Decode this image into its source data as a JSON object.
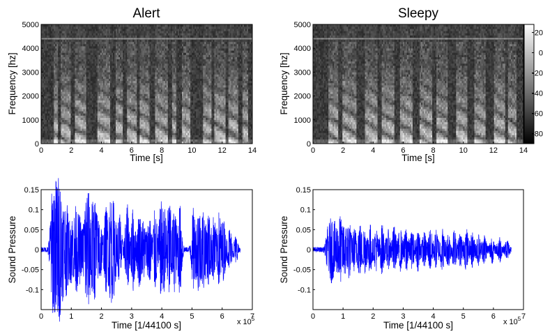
{
  "chart_data": [
    {
      "type": "heatmap",
      "title": "Alert",
      "xlabel": "Time [s]",
      "ylabel": "Frequency [hz]",
      "xlim": [
        0,
        14
      ],
      "ylim": [
        0,
        5000
      ],
      "x_ticks": [
        "0",
        "2",
        "4",
        "6",
        "8",
        "10",
        "12",
        "14"
      ],
      "y_ticks": [
        "0",
        "1000",
        "2000",
        "3000",
        "4000",
        "5000"
      ],
      "colormap": "gray",
      "speech_segments_s": [
        [
          0.8,
          1.1
        ],
        [
          1.3,
          2.0
        ],
        [
          2.2,
          3.0
        ],
        [
          3.7,
          4.6
        ],
        [
          4.9,
          5.4
        ],
        [
          5.7,
          6.3
        ],
        [
          6.5,
          7.2
        ],
        [
          7.6,
          8.4
        ],
        [
          8.7,
          9.0
        ],
        [
          9.3,
          9.9
        ],
        [
          10.7,
          11.3
        ],
        [
          11.5,
          12.2
        ],
        [
          12.4,
          13.1
        ],
        [
          13.3,
          13.7
        ]
      ]
    },
    {
      "type": "heatmap",
      "title": "Sleepy",
      "xlabel": "Time [s]",
      "ylabel": "Frequency [hz]",
      "xlim": [
        0,
        14
      ],
      "ylim": [
        0,
        5000
      ],
      "x_ticks": [
        "0",
        "2",
        "4",
        "6",
        "8",
        "10",
        "12",
        "14"
      ],
      "y_ticks": [
        "0",
        "1000",
        "2000",
        "3000",
        "4000",
        "5000"
      ],
      "colormap": "gray",
      "colorbar": {
        "ticks": [
          "20",
          "0",
          "-20",
          "-40",
          "-60",
          "-80"
        ],
        "range": [
          -90,
          28
        ]
      },
      "speech_segments_s": [
        [
          1.0,
          1.7
        ],
        [
          2.0,
          2.9
        ],
        [
          3.5,
          4.3
        ],
        [
          4.6,
          5.4
        ],
        [
          5.8,
          6.6
        ],
        [
          7.1,
          7.9
        ],
        [
          8.2,
          9.0
        ],
        [
          9.5,
          10.3
        ],
        [
          10.7,
          11.5
        ],
        [
          12.0,
          12.8
        ],
        [
          13.0,
          13.5
        ]
      ]
    },
    {
      "type": "line",
      "xlabel": "Time [1/44100 s]",
      "ylabel": "Sound Pressure",
      "x_multiplier": "x 10^5",
      "xlim": [
        0,
        7
      ],
      "ylim": [
        -0.15,
        0.15
      ],
      "x_ticks": [
        "0",
        "1",
        "2",
        "3",
        "4",
        "5",
        "6",
        "7"
      ],
      "y_ticks": [
        "0.15",
        "0.1",
        "0.05",
        "0",
        "-0.05",
        "-0.1"
      ],
      "series_color": "#0000ff",
      "signal_end": 6.6,
      "bursts": [
        [
          0.36,
          0.12
        ],
        [
          0.44,
          0.07
        ],
        [
          0.52,
          0.13
        ],
        [
          0.62,
          0.135
        ],
        [
          0.73,
          0.09
        ],
        [
          0.85,
          0.1
        ],
        [
          1.0,
          0.08
        ],
        [
          1.15,
          0.1
        ],
        [
          1.28,
          0.075
        ],
        [
          1.45,
          0.09
        ],
        [
          1.55,
          0.13
        ],
        [
          1.68,
          0.1
        ],
        [
          1.8,
          0.11
        ],
        [
          1.95,
          0.08
        ],
        [
          2.15,
          0.1
        ],
        [
          2.3,
          0.12
        ],
        [
          2.42,
          0.1
        ],
        [
          2.6,
          0.09
        ],
        [
          2.85,
          0.11
        ],
        [
          3.05,
          0.1
        ],
        [
          3.25,
          0.09
        ],
        [
          3.4,
          0.07
        ],
        [
          3.58,
          0.09
        ],
        [
          3.78,
          0.1
        ],
        [
          3.97,
          0.11
        ],
        [
          4.1,
          0.09
        ],
        [
          4.25,
          0.12
        ],
        [
          4.42,
          0.1
        ],
        [
          4.6,
          0.11
        ],
        [
          5.05,
          0.1
        ],
        [
          5.22,
          0.11
        ],
        [
          5.38,
          0.1
        ],
        [
          5.55,
          0.09
        ],
        [
          5.72,
          0.08
        ],
        [
          5.9,
          0.09
        ],
        [
          6.05,
          0.07
        ],
        [
          6.25,
          0.05
        ],
        [
          6.45,
          0.03
        ]
      ]
    },
    {
      "type": "line",
      "xlabel": "Time [1/44100 s]",
      "ylabel": "Sound Pressure",
      "x_multiplier": "x 10^5",
      "xlim": [
        0,
        7
      ],
      "ylim": [
        -0.15,
        0.15
      ],
      "x_ticks": [
        "0",
        "1",
        "2",
        "3",
        "4",
        "5",
        "6",
        "7"
      ],
      "y_ticks": [
        "0.15",
        "0.1",
        "0.05",
        "0",
        "-0.05",
        "-0.1"
      ],
      "series_color": "#0000ff",
      "signal_end": 6.6,
      "bursts": [
        [
          0.5,
          0.05
        ],
        [
          0.62,
          0.07
        ],
        [
          0.75,
          0.06
        ],
        [
          0.9,
          0.08
        ],
        [
          1.05,
          0.06
        ],
        [
          1.2,
          0.07
        ],
        [
          1.38,
          0.05
        ],
        [
          1.55,
          0.065
        ],
        [
          1.72,
          0.055
        ],
        [
          1.9,
          0.06
        ],
        [
          2.1,
          0.05
        ],
        [
          2.3,
          0.06
        ],
        [
          2.5,
          0.045
        ],
        [
          2.7,
          0.055
        ],
        [
          2.9,
          0.05
        ],
        [
          3.1,
          0.055
        ],
        [
          3.3,
          0.045
        ],
        [
          3.5,
          0.05
        ],
        [
          3.7,
          0.04
        ],
        [
          3.9,
          0.05
        ],
        [
          4.1,
          0.045
        ],
        [
          4.3,
          0.05
        ],
        [
          4.5,
          0.04
        ],
        [
          4.7,
          0.045
        ],
        [
          4.9,
          0.04
        ],
        [
          5.1,
          0.05
        ],
        [
          5.3,
          0.04
        ],
        [
          5.5,
          0.035
        ],
        [
          5.7,
          0.035
        ],
        [
          5.95,
          0.03
        ],
        [
          6.2,
          0.03
        ],
        [
          6.45,
          0.02
        ]
      ]
    }
  ]
}
